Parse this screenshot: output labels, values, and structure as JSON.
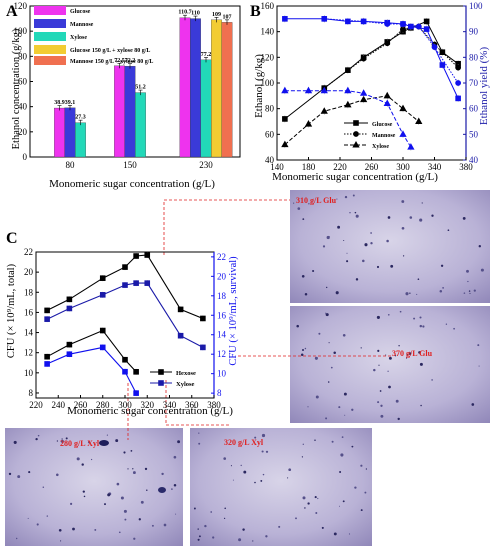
{
  "panels": {
    "A": {
      "label": "A",
      "ylabel": "Ethanol concentration (g/kg)",
      "xlabel": "Monomeric sugar concentration (g/L)"
    },
    "B": {
      "label": "B",
      "ylabel_left": "Ethanol (g/kg)",
      "ylabel_right": "Ethanol yield (%)",
      "xlabel": "Monomeric sugar concentration (g/L)"
    },
    "C": {
      "label": "C",
      "ylabel_left": "CFU (× 10⁹/mL, total)",
      "ylabel_right": "CFU (× 10⁹/mL, survival)",
      "xlabel": "Monomeric sugar concentration (g/L)"
    }
  },
  "micrographs": [
    {
      "id": "m310",
      "label": "310 g/L Glu"
    },
    {
      "id": "m370",
      "label": "370 g/L Glu"
    },
    {
      "id": "m280",
      "label": "280 g/L Xyl"
    },
    {
      "id": "m320",
      "label": "320 g/L Xyl"
    }
  ],
  "colors": {
    "glucose": "#ee33ee",
    "mannose": "#3a3ad8",
    "xylose": "#22d8b8",
    "glc_xyl": "#f2cc33",
    "man_xyl": "#f07050",
    "black": "#000000",
    "blue": "#1010ee",
    "darkblue": "#1a1aa8",
    "red": "#e02020"
  },
  "chart_data": [
    {
      "panel": "A",
      "type": "bar",
      "xlabel": "Monomeric sugar concentration (g/L)",
      "ylabel": "Ethanol concentration (g/kg)",
      "categories": [
        "80",
        "150",
        "230"
      ],
      "ylim": [
        0,
        120
      ],
      "yticks": [
        0,
        20,
        40,
        60,
        80,
        100,
        120
      ],
      "legend": "top-left",
      "series": [
        {
          "name": "Glucose",
          "values": [
            38.9,
            72.5,
            110.7
          ],
          "labels": [
            "38.9",
            "72.5",
            "110.7"
          ],
          "colorKey": "glucose"
        },
        {
          "name": "Mannose",
          "values": [
            39.1,
            72.2,
            110
          ],
          "labels": [
            "39.1",
            "72.2",
            "110"
          ],
          "colorKey": "mannose"
        },
        {
          "name": "Xylose",
          "values": [
            27.3,
            51.2,
            77.2
          ],
          "labels": [
            "27.3",
            "51.2",
            "77.2"
          ],
          "colorKey": "xylose"
        },
        {
          "name": "Glucose 150 g/L + xylose 80 g/L",
          "values": [
            null,
            null,
            109
          ],
          "labels": [
            null,
            null,
            "109"
          ],
          "colorKey": "glc_xyl"
        },
        {
          "name": "Mannose 150 g/L + xylose 80 g/L",
          "values": [
            null,
            null,
            107
          ],
          "labels": [
            null,
            null,
            "107"
          ],
          "colorKey": "man_xyl"
        }
      ]
    },
    {
      "panel": "B",
      "type": "line",
      "xlabel": "Monomeric sugar concentration (g/L)",
      "ylabel": "Ethanol (g/kg)",
      "y2label": "Ethanol yield (%)",
      "xlim": [
        140,
        380
      ],
      "xticks": [
        140,
        180,
        220,
        260,
        300,
        340,
        380
      ],
      "ylim": [
        40,
        160
      ],
      "yticks": [
        40,
        60,
        80,
        100,
        120,
        140,
        160
      ],
      "y2lim": [
        40,
        100
      ],
      "y2ticks": [
        40,
        50,
        60,
        70,
        80,
        90,
        100
      ],
      "legend": "bottom-center",
      "series": [
        {
          "name": "Glucose",
          "axis": "left",
          "style": "solid",
          "marker": "square",
          "colorKey": "black",
          "x": [
            150,
            200,
            230,
            250,
            280,
            300,
            310,
            330,
            350,
            370
          ],
          "y": [
            72,
            96,
            110,
            120,
            132,
            140,
            143,
            148,
            124,
            115
          ]
        },
        {
          "name": "Mannose",
          "axis": "left",
          "style": "dotted",
          "marker": "circle",
          "colorKey": "black",
          "x": [
            200,
            250,
            280,
            300,
            320,
            340,
            370
          ],
          "y": [
            96,
            119,
            131,
            142,
            144,
            130,
            112
          ]
        },
        {
          "name": "Xylose",
          "axis": "left",
          "style": "dashed",
          "marker": "triangle",
          "colorKey": "black",
          "x": [
            150,
            180,
            200,
            230,
            250,
            280,
            300,
            320
          ],
          "y": [
            52,
            68,
            78,
            83,
            87,
            90,
            80,
            70
          ]
        },
        {
          "name": "Glucose yield",
          "axis": "right",
          "style": "solid",
          "marker": "square",
          "colorKey": "blue",
          "x": [
            150,
            200,
            230,
            250,
            280,
            300,
            310,
            330,
            350,
            370
          ],
          "y": [
            95,
            95,
            94,
            94,
            93.5,
            93,
            92,
            91,
            77,
            64
          ]
        },
        {
          "name": "Mannose yield",
          "axis": "right",
          "style": "dotted",
          "marker": "circle",
          "colorKey": "blue",
          "x": [
            200,
            250,
            280,
            300,
            320,
            340,
            370
          ],
          "y": [
            95,
            94,
            93,
            93,
            92,
            84,
            70
          ]
        },
        {
          "name": "Xylose yield",
          "axis": "right",
          "style": "dashed",
          "marker": "triangle",
          "colorKey": "blue",
          "x": [
            150,
            180,
            200,
            230,
            250,
            280,
            300,
            310
          ],
          "y": [
            67,
            67,
            67,
            67,
            66,
            62,
            50,
            45
          ]
        }
      ]
    },
    {
      "panel": "C",
      "type": "line",
      "xlabel": "Monomeric sugar concentration (g/L)",
      "ylabel": "CFU (× 10⁹/mL, total)",
      "y2label": "CFU (× 10⁹/mL, survival)",
      "xlim": [
        220,
        380
      ],
      "xticks": [
        220,
        240,
        260,
        280,
        300,
        320,
        340,
        360,
        380
      ],
      "ylim": [
        7.5,
        22
      ],
      "yticks": [
        8,
        10,
        12,
        14,
        16,
        18,
        20,
        22
      ],
      "y2lim": [
        7.5,
        22.5
      ],
      "y2ticks": [
        8,
        10,
        12,
        14,
        16,
        18,
        20,
        22
      ],
      "legend": "bottom-right",
      "series": [
        {
          "name": "Hexose",
          "axis": "left",
          "marker": "square",
          "colorKey": "black",
          "x": [
            230,
            250,
            280,
            300,
            310,
            320,
            350,
            370
          ],
          "y": [
            16.2,
            17.3,
            19.4,
            20.5,
            21.6,
            21.7,
            16.3,
            15.4
          ]
        },
        {
          "name": "Hexose survival",
          "axis": "right",
          "marker": "square",
          "colorKey": "darkblue",
          "x": [
            230,
            250,
            280,
            300,
            310,
            320,
            350,
            370
          ],
          "y": [
            15.6,
            16.7,
            18.1,
            19.1,
            19.3,
            19.3,
            13.9,
            12.7
          ]
        },
        {
          "name": "Xylose",
          "axis": "left",
          "marker": "square",
          "colorKey": "black",
          "x": [
            230,
            250,
            280,
            300,
            310
          ],
          "y": [
            11.6,
            12.8,
            14.2,
            11.3,
            10.1
          ]
        },
        {
          "name": "Xylose survival",
          "axis": "right",
          "marker": "square",
          "colorKey": "blue",
          "x": [
            230,
            250,
            280,
            300,
            310
          ],
          "y": [
            11.0,
            12.0,
            12.7,
            10.2,
            8.0
          ]
        }
      ],
      "legend_entries": [
        {
          "name": "Hexose",
          "colorKey": "black"
        },
        {
          "name": "Xylose",
          "colorKey": "darkblue"
        }
      ]
    }
  ]
}
